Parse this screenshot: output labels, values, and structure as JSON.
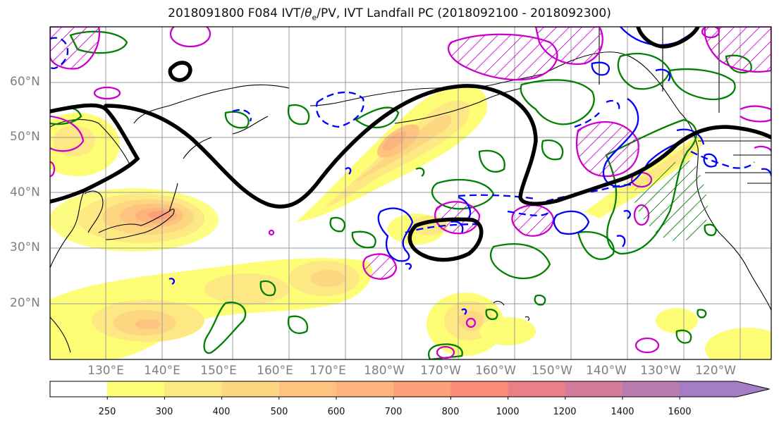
{
  "title": "2018091800 F084 IVT/",
  "title_theta": "θ",
  "title_sub": "e",
  "title_rest": "/PV, IVT Landfall PC (2018092100 - 2018092300)",
  "lat_labels": [
    "60°N",
    "50°N",
    "40°N",
    "30°N",
    "20°N"
  ],
  "lon_labels": [
    "130°E",
    "140°E",
    "150°E",
    "160°E",
    "170°E",
    "180°W",
    "170°W",
    "160°W",
    "150°W",
    "140°W",
    "130°W",
    "120°W"
  ],
  "colorbar": {
    "ticks": [
      "250",
      "300",
      "400",
      "500",
      "600",
      "700",
      "800",
      "1000",
      "1200",
      "1400",
      "1600"
    ],
    "colors": [
      "#ffffff",
      "#fefd76",
      "#fde883",
      "#fdd681",
      "#fdc37f",
      "#fdb47c",
      "#fd9f79",
      "#fd8b76",
      "#ec8088",
      "#d57b9c",
      "#b87ab0",
      "#a57dc6"
    ]
  },
  "colors": {
    "ivt_pc_contour": "#000000",
    "pv_positive": "#0000ff",
    "theta_e": "#008000",
    "hatch": "#cc00cc"
  }
}
